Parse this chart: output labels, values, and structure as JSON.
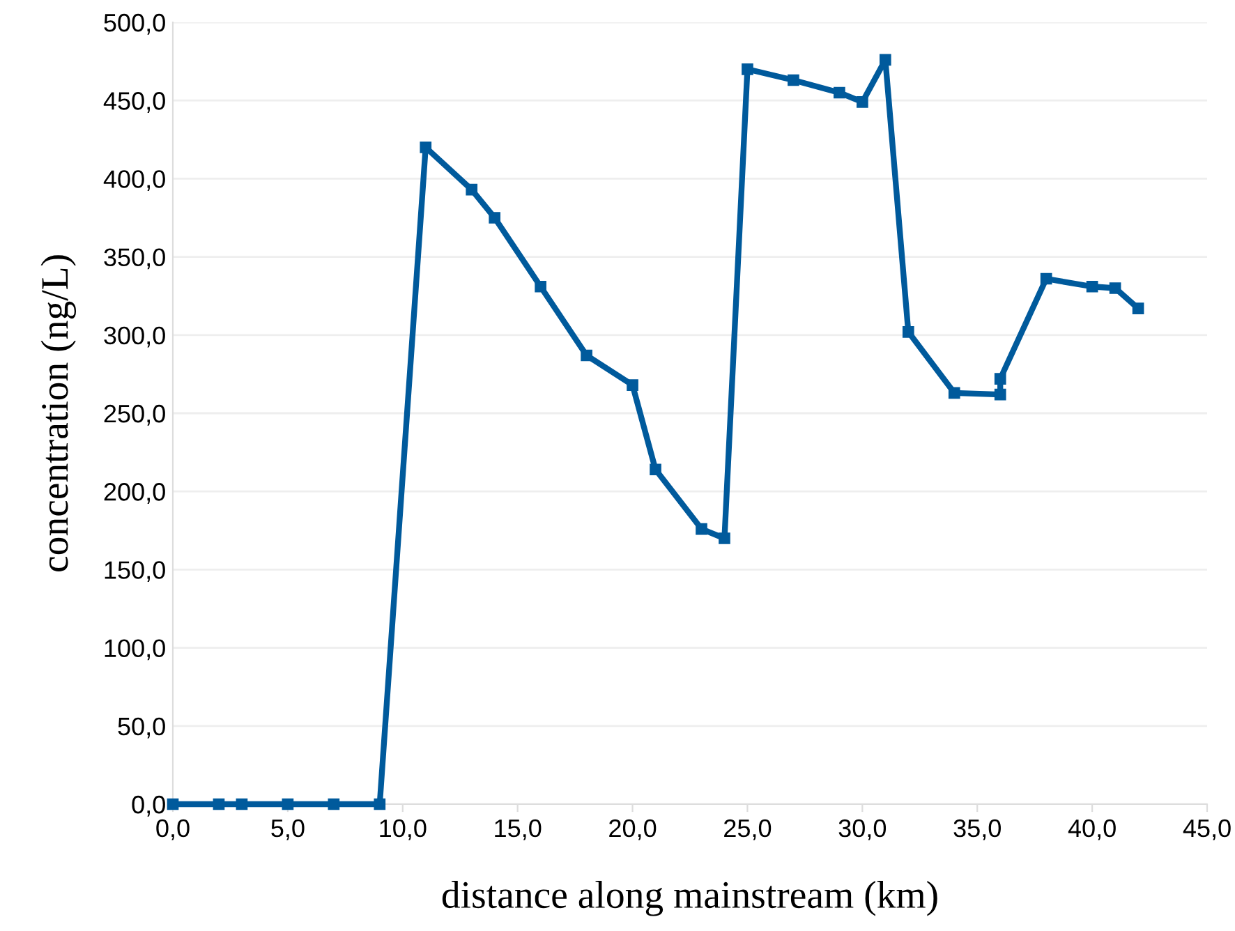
{
  "chart_data": {
    "type": "line",
    "xlabel": "distance along mainstream (km)",
    "ylabel": "concentration (ng/L)",
    "x": [
      0,
      2,
      3,
      5,
      7,
      9,
      11,
      13,
      14,
      16,
      18,
      20,
      21,
      23,
      24,
      25,
      27,
      29,
      30,
      31,
      32,
      34,
      36,
      36,
      38,
      40,
      41,
      42
    ],
    "series": [
      {
        "color": "#005a9c",
        "values": [
          0,
          0,
          0,
          0,
          0,
          0,
          420,
          393,
          375,
          331,
          287,
          268,
          214,
          176,
          170,
          470,
          463,
          455,
          449,
          476,
          302,
          263,
          262,
          272,
          336,
          331,
          330,
          317
        ]
      }
    ],
    "xlim": [
      0,
      45
    ],
    "ylim": [
      0,
      500
    ],
    "xticks": [
      {
        "value": 0,
        "label": "0,0"
      },
      {
        "value": 5,
        "label": "5,0"
      },
      {
        "value": 10,
        "label": "10,0"
      },
      {
        "value": 15,
        "label": "15,0"
      },
      {
        "value": 20,
        "label": "20,0"
      },
      {
        "value": 25,
        "label": "25,0"
      },
      {
        "value": 30,
        "label": "30,0"
      },
      {
        "value": 35,
        "label": "35,0"
      },
      {
        "value": 40,
        "label": "40,0"
      },
      {
        "value": 45,
        "label": "45,0"
      }
    ],
    "yticks": [
      {
        "value": 0,
        "label": "0,0"
      },
      {
        "value": 50,
        "label": "50,0"
      },
      {
        "value": 100,
        "label": "100,0"
      },
      {
        "value": 150,
        "label": "150,0"
      },
      {
        "value": 200,
        "label": "200,0"
      },
      {
        "value": 250,
        "label": "250,0"
      },
      {
        "value": 300,
        "label": "300,0"
      },
      {
        "value": 350,
        "label": "350,0"
      },
      {
        "value": 400,
        "label": "400,0"
      },
      {
        "value": 450,
        "label": "450,0"
      },
      {
        "value": 500,
        "label": "500,0"
      }
    ],
    "grid": "y",
    "marker": "square",
    "line_style": "solid",
    "legend": false
  }
}
